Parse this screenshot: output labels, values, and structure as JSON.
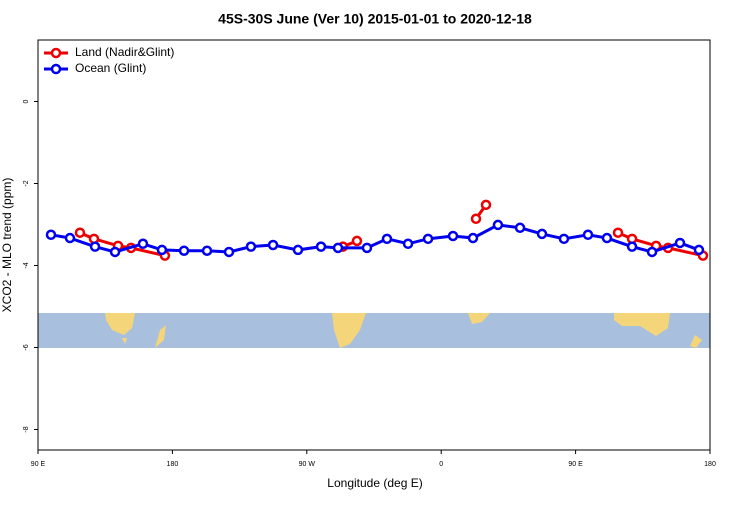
{
  "chart_data": {
    "type": "line",
    "title": "45S-30S June (Ver 10)   2015-01-01 to 2020-12-18",
    "x_label": "Longitude (deg E)",
    "y_label": "XCO2 - MLO trend (ppm)",
    "xlim": [
      90,
      540
    ],
    "ylim": [
      -8.5,
      1.5
    ],
    "xticks": [
      {
        "value": 90,
        "label": "90 E"
      },
      {
        "value": 180,
        "label": "180"
      },
      {
        "value": 270,
        "label": "90 W"
      },
      {
        "value": 360,
        "label": "0"
      },
      {
        "value": 450,
        "label": "90 E"
      },
      {
        "value": 540,
        "label": "180"
      }
    ],
    "yticks": [
      0,
      -2,
      -4,
      -6,
      -8
    ],
    "legend": "top-left",
    "series": [
      {
        "name": "Land (Nadir&Glint)",
        "color": "#ee0000",
        "x": [
          118.1,
          127.5,
          143.6,
          152.3,
          175,
          null,
          294.2,
          303.6,
          null,
          383.3,
          390,
          null,
          478.4,
          487.8,
          503.9,
          511.9,
          535.3
        ],
        "values": [
          -3.2,
          -3.35,
          -3.52,
          -3.57,
          -3.76,
          null,
          -3.54,
          -3.4,
          null,
          -2.86,
          -2.52,
          null,
          -3.2,
          -3.35,
          -3.52,
          -3.57,
          -3.76
        ]
      },
      {
        "name": "Ocean (Glint)",
        "color": "#0000ee",
        "x": [
          98.7,
          111.4,
          128.2,
          141.6,
          160.3,
          173,
          187.8,
          203.2,
          217.9,
          232.6,
          247.4,
          264.1,
          279.5,
          290.9,
          310.3,
          323.7,
          337.8,
          351.2,
          367.9,
          381.3,
          398,
          412.8,
          427.5,
          442.2,
          458.3,
          471,
          487.8,
          501.2,
          519.9,
          532.6
        ],
        "values": [
          -3.25,
          -3.33,
          -3.54,
          -3.67,
          -3.47,
          -3.62,
          -3.64,
          -3.64,
          -3.67,
          -3.54,
          -3.5,
          -3.62,
          -3.54,
          -3.57,
          -3.57,
          -3.35,
          -3.47,
          -3.35,
          -3.28,
          -3.33,
          -3.01,
          -3.08,
          -3.23,
          -3.35,
          -3.25,
          -3.33,
          -3.54,
          -3.67,
          -3.45,
          -3.62
        ]
      }
    ]
  }
}
